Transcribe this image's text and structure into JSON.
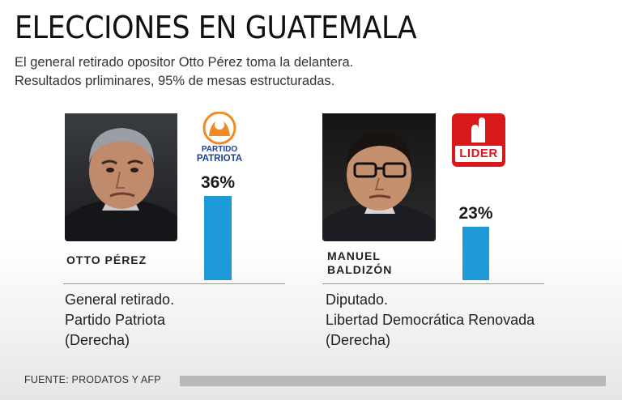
{
  "header": {
    "title": "ELECCIONES EN GUATEMALA",
    "subtitle_line1": "El general retirado opositor Otto Pérez toma la delantera.",
    "subtitle_line2": "Resultados prliminares, 95% de mesas estructuradas."
  },
  "chart_data": {
    "type": "bar",
    "categories": [
      "OTTO PÉREZ",
      "MANUEL BALDIZÓN"
    ],
    "values": [
      36,
      23
    ],
    "value_labels": [
      "36%",
      "23%"
    ],
    "unit": "%",
    "title": "ELECCIONES EN GUATEMALA",
    "xlabel": "",
    "ylabel": "",
    "ylim": [
      0,
      36
    ]
  },
  "candidates": [
    {
      "name": "OTTO PÉREZ",
      "pct_label": "36%",
      "party_logo_text": [
        "PARTIDO",
        "PATRIOTA"
      ],
      "description": [
        "General retirado.",
        "Partido Patriota",
        "(Derecha)"
      ],
      "colors": {
        "logo_primary": "#1f3f93",
        "logo_accent": "#f08a22"
      }
    },
    {
      "name_line1": "MANUEL",
      "name_line2": "BALDIZÓN",
      "pct_label": "23%",
      "party_logo_text": "LIDER",
      "description": [
        "Diputado.",
        "Libertad Democrática Renovada",
        "(Derecha)"
      ],
      "colors": {
        "logo_primary": "#d7191c"
      }
    }
  ],
  "footer": {
    "source": "FUENTE: PRODATOS Y AFP"
  },
  "colors": {
    "bar": "#1e9ad8",
    "divider": "#999999",
    "source_bar": "#b8b8b8"
  }
}
